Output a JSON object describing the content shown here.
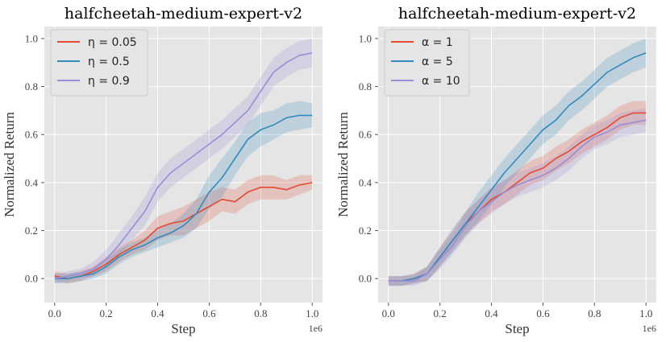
{
  "chart_data": [
    {
      "type": "line",
      "title": "halfcheetah-medium-expert-v2",
      "xlabel": "Step",
      "ylabel": "Normalized Return",
      "x_offset_label": "1e6",
      "xlim": [
        -0.04,
        1.04
      ],
      "ylim": [
        -0.1,
        1.05
      ],
      "xticks": [
        "0.0",
        "0.2",
        "0.4",
        "0.6",
        "0.8",
        "1.0"
      ],
      "yticks": [
        "0.0",
        "0.2",
        "0.4",
        "0.6",
        "0.8",
        "1.0"
      ],
      "grid": true,
      "legend_position": "top-left",
      "series": [
        {
          "name": "η = 0.05",
          "legend_label": "η = 0.05",
          "color": "#E24A33",
          "x": [
            0.0,
            0.05,
            0.1,
            0.15,
            0.2,
            0.25,
            0.3,
            0.35,
            0.4,
            0.45,
            0.5,
            0.55,
            0.6,
            0.65,
            0.7,
            0.75,
            0.8,
            0.85,
            0.9,
            0.95,
            1.0
          ],
          "y": [
            0.01,
            0.0,
            0.01,
            0.03,
            0.06,
            0.1,
            0.13,
            0.16,
            0.21,
            0.23,
            0.24,
            0.27,
            0.3,
            0.33,
            0.32,
            0.36,
            0.38,
            0.38,
            0.37,
            0.39,
            0.4
          ],
          "band": [
            0.02,
            0.02,
            0.02,
            0.02,
            0.03,
            0.03,
            0.03,
            0.04,
            0.05,
            0.05,
            0.06,
            0.06,
            0.06,
            0.05,
            0.05,
            0.05,
            0.05,
            0.05,
            0.04,
            0.04,
            0.03
          ]
        },
        {
          "name": "η = 0.5",
          "legend_label": "η = 0.5",
          "color": "#348ABD",
          "x": [
            0.0,
            0.05,
            0.1,
            0.15,
            0.2,
            0.25,
            0.3,
            0.35,
            0.4,
            0.45,
            0.5,
            0.55,
            0.6,
            0.65,
            0.7,
            0.75,
            0.8,
            0.85,
            0.9,
            0.95,
            1.0
          ],
          "y": [
            0.0,
            0.0,
            0.01,
            0.02,
            0.05,
            0.09,
            0.12,
            0.14,
            0.17,
            0.19,
            0.22,
            0.27,
            0.36,
            0.42,
            0.5,
            0.58,
            0.62,
            0.64,
            0.67,
            0.68,
            0.68
          ],
          "band": [
            0.02,
            0.02,
            0.02,
            0.02,
            0.03,
            0.03,
            0.03,
            0.03,
            0.04,
            0.04,
            0.05,
            0.06,
            0.07,
            0.08,
            0.07,
            0.07,
            0.07,
            0.06,
            0.06,
            0.06,
            0.05
          ]
        },
        {
          "name": "η = 0.9",
          "legend_label": "η = 0.9",
          "color": "#988ED5",
          "x": [
            0.0,
            0.05,
            0.1,
            0.15,
            0.2,
            0.25,
            0.3,
            0.35,
            0.4,
            0.45,
            0.5,
            0.55,
            0.6,
            0.65,
            0.7,
            0.75,
            0.8,
            0.85,
            0.9,
            0.95,
            1.0
          ],
          "y": [
            0.0,
            0.01,
            0.02,
            0.04,
            0.08,
            0.14,
            0.21,
            0.28,
            0.38,
            0.44,
            0.48,
            0.52,
            0.56,
            0.6,
            0.65,
            0.7,
            0.78,
            0.86,
            0.9,
            0.93,
            0.94
          ],
          "band": [
            0.02,
            0.02,
            0.02,
            0.03,
            0.04,
            0.05,
            0.05,
            0.06,
            0.06,
            0.06,
            0.06,
            0.06,
            0.06,
            0.06,
            0.06,
            0.06,
            0.06,
            0.06,
            0.06,
            0.06,
            0.06
          ]
        }
      ]
    },
    {
      "type": "line",
      "title": "halfcheetah-medium-expert-v2",
      "xlabel": "Step",
      "ylabel": "Normalized Return",
      "x_offset_label": "1e6",
      "xlim": [
        -0.04,
        1.04
      ],
      "ylim": [
        -0.1,
        1.05
      ],
      "xticks": [
        "0.0",
        "0.2",
        "0.4",
        "0.6",
        "0.8",
        "1.0"
      ],
      "yticks": [
        "0.0",
        "0.2",
        "0.4",
        "0.6",
        "0.8",
        "1.0"
      ],
      "grid": true,
      "legend_position": "top-left",
      "series": [
        {
          "name": "α = 1",
          "legend_label": "α = 1",
          "color": "#E24A33",
          "x": [
            0.0,
            0.05,
            0.1,
            0.15,
            0.2,
            0.25,
            0.3,
            0.35,
            0.4,
            0.45,
            0.5,
            0.55,
            0.6,
            0.65,
            0.7,
            0.75,
            0.8,
            0.85,
            0.9,
            0.95,
            1.0
          ],
          "y": [
            -0.01,
            -0.01,
            0.0,
            0.02,
            0.09,
            0.16,
            0.23,
            0.28,
            0.33,
            0.36,
            0.4,
            0.44,
            0.46,
            0.5,
            0.53,
            0.57,
            0.6,
            0.63,
            0.67,
            0.69,
            0.69
          ],
          "band": [
            0.02,
            0.02,
            0.02,
            0.03,
            0.04,
            0.04,
            0.05,
            0.05,
            0.05,
            0.05,
            0.05,
            0.05,
            0.05,
            0.05,
            0.05,
            0.05,
            0.05,
            0.05,
            0.05,
            0.05,
            0.05
          ]
        },
        {
          "name": "α = 5",
          "legend_label": "α = 5",
          "color": "#348ABD",
          "x": [
            0.0,
            0.05,
            0.1,
            0.15,
            0.2,
            0.25,
            0.3,
            0.35,
            0.4,
            0.45,
            0.5,
            0.55,
            0.6,
            0.65,
            0.7,
            0.75,
            0.8,
            0.85,
            0.9,
            0.95,
            1.0
          ],
          "y": [
            -0.01,
            -0.01,
            0.0,
            0.02,
            0.09,
            0.16,
            0.23,
            0.3,
            0.37,
            0.44,
            0.5,
            0.56,
            0.62,
            0.66,
            0.72,
            0.76,
            0.81,
            0.86,
            0.89,
            0.92,
            0.94
          ],
          "band": [
            0.02,
            0.02,
            0.02,
            0.03,
            0.04,
            0.05,
            0.05,
            0.06,
            0.06,
            0.06,
            0.06,
            0.06,
            0.06,
            0.06,
            0.06,
            0.06,
            0.06,
            0.06,
            0.06,
            0.06,
            0.06
          ]
        },
        {
          "name": "α = 10",
          "legend_label": "α = 10",
          "color": "#988ED5",
          "x": [
            0.0,
            0.05,
            0.1,
            0.15,
            0.2,
            0.25,
            0.3,
            0.35,
            0.4,
            0.45,
            0.5,
            0.55,
            0.6,
            0.65,
            0.7,
            0.75,
            0.8,
            0.85,
            0.9,
            0.95,
            1.0
          ],
          "y": [
            -0.01,
            -0.01,
            -0.01,
            0.02,
            0.08,
            0.14,
            0.22,
            0.28,
            0.32,
            0.36,
            0.39,
            0.41,
            0.43,
            0.46,
            0.5,
            0.55,
            0.59,
            0.61,
            0.64,
            0.65,
            0.66
          ],
          "band": [
            0.02,
            0.02,
            0.02,
            0.03,
            0.04,
            0.04,
            0.05,
            0.05,
            0.05,
            0.05,
            0.05,
            0.05,
            0.05,
            0.05,
            0.05,
            0.05,
            0.05,
            0.05,
            0.05,
            0.05,
            0.05
          ]
        }
      ]
    }
  ]
}
